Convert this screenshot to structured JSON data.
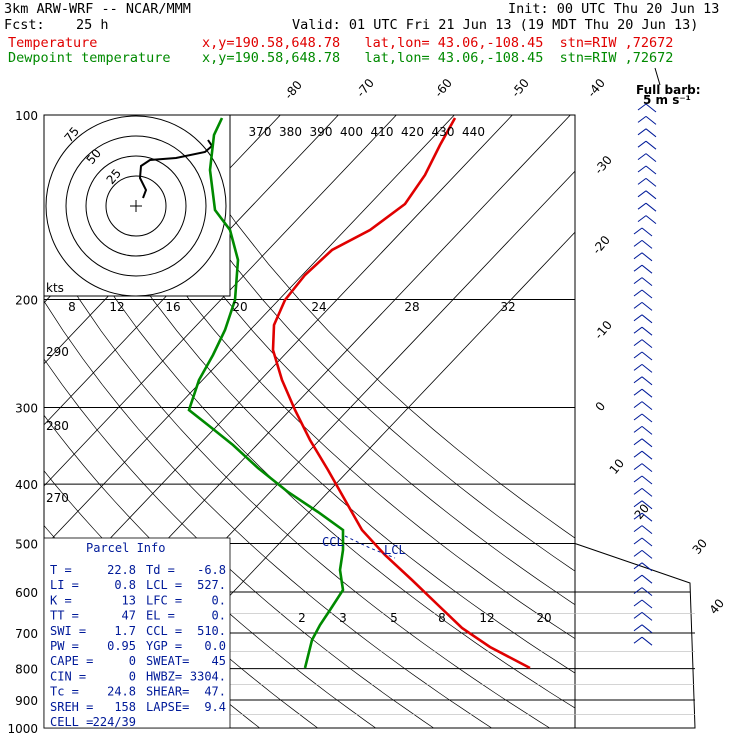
{
  "header": {
    "line1_left": "3km ARW-WRF -- NCAR/MMM",
    "line1_right": "Init: 00 UTC Thu 20 Jun 13",
    "fcst_label": "Fcst:",
    "fcst_value": "25 h",
    "valid": "Valid: 01 UTC Fri 21 Jun 13 (19 MDT Thu 20 Jun 13)",
    "temp_label": "Temperature",
    "temp_info": "x,y=190.58,648.78   lat,lon= 43.06,-108.45  stn=RIW ,72672",
    "dew_label": "Dewpoint temperature",
    "dew_info": "x,y=190.58,648.78   lat,lon= 43.06,-108.45  stn=RIW ,72672"
  },
  "colors": {
    "temperature": "#e00000",
    "dewpoint": "#008a00",
    "parcel_text": "#001a99",
    "grid": "#000000"
  },
  "chart_data": {
    "type": "line",
    "subtype": "skew-T log-P sounding",
    "pressure_levels": [
      "100",
      "200",
      "290",
      "300",
      "280",
      "400",
      "270",
      "500",
      "600",
      "700",
      "800",
      "900",
      "1000"
    ],
    "pressure_ticks": [
      100,
      200,
      300,
      400,
      500,
      600,
      700,
      800,
      900,
      1000
    ],
    "skewed_temp_labels": [
      "-80",
      "-70",
      "-60",
      "-50",
      "-40",
      "-30",
      "-20",
      "-10",
      "0",
      "10",
      "20",
      "30",
      "40"
    ],
    "theta_labels": [
      "370",
      "380",
      "390",
      "400",
      "410",
      "420",
      "430",
      "440"
    ],
    "mixing_ratio_labels_top": [
      "8",
      "12",
      "16",
      "20",
      "24",
      "28",
      "32"
    ],
    "mixing_ratio_labels_bottom": [
      "2",
      "3",
      "5",
      "8",
      "12",
      "20"
    ],
    "dry_adiabat_labels": [
      "290",
      "280",
      "270"
    ],
    "series": [
      {
        "name": "Temperature",
        "pressure_hpa": [
          100,
          150,
          200,
          250,
          300,
          350,
          400,
          450,
          500,
          550,
          600,
          650,
          700,
          750,
          800
        ],
        "temp_c": [
          -55,
          -58,
          -56,
          -52,
          -43,
          -32,
          -22,
          -13,
          -6,
          0,
          5,
          9,
          13,
          17,
          21
        ]
      },
      {
        "name": "Dewpoint temperature",
        "pressure_hpa": [
          100,
          150,
          200,
          250,
          300,
          350,
          400,
          450,
          500,
          550,
          600,
          650,
          700,
          750,
          800
        ],
        "temp_c": [
          -84,
          -83,
          -66,
          -58,
          -60,
          -49,
          -36,
          -22,
          -10,
          -10,
          -10,
          -10,
          -10,
          -9,
          -8
        ]
      }
    ],
    "labels_on_curve": {
      "ccl": "CCL",
      "lcl": "LCL"
    },
    "hodograph": {
      "rings": [
        "75",
        "50",
        "25"
      ],
      "unit": "kts"
    },
    "wind_barbs_title": "Full barb:",
    "wind_barbs_unit": "5 m s⁻¹"
  },
  "parcel_info": {
    "title": "Parcel Info",
    "rows": [
      [
        "T   =",
        "22.8",
        "Td =",
        "-6.8"
      ],
      [
        "LI  =",
        "0.8",
        "LCL =",
        "527."
      ],
      [
        "K   =",
        "13",
        "LFC =",
        "0."
      ],
      [
        "TT  =",
        "47",
        "EL  =",
        "0."
      ],
      [
        "SWI =",
        "1.7",
        "CCL =",
        "510."
      ],
      [
        "PW  =",
        "0.95",
        "YGP =",
        "0.0"
      ],
      [
        "CAPE =",
        "0",
        "SWEAT=",
        "45"
      ],
      [
        "CIN  =",
        "0",
        "HWBZ=",
        "3304."
      ],
      [
        "Tc   =",
        "24.8",
        "SHEAR=",
        "47."
      ],
      [
        "SREH =",
        "158",
        "LAPSE=",
        "9.4"
      ],
      [
        "CELL =",
        "224/39",
        "",
        ""
      ]
    ]
  }
}
